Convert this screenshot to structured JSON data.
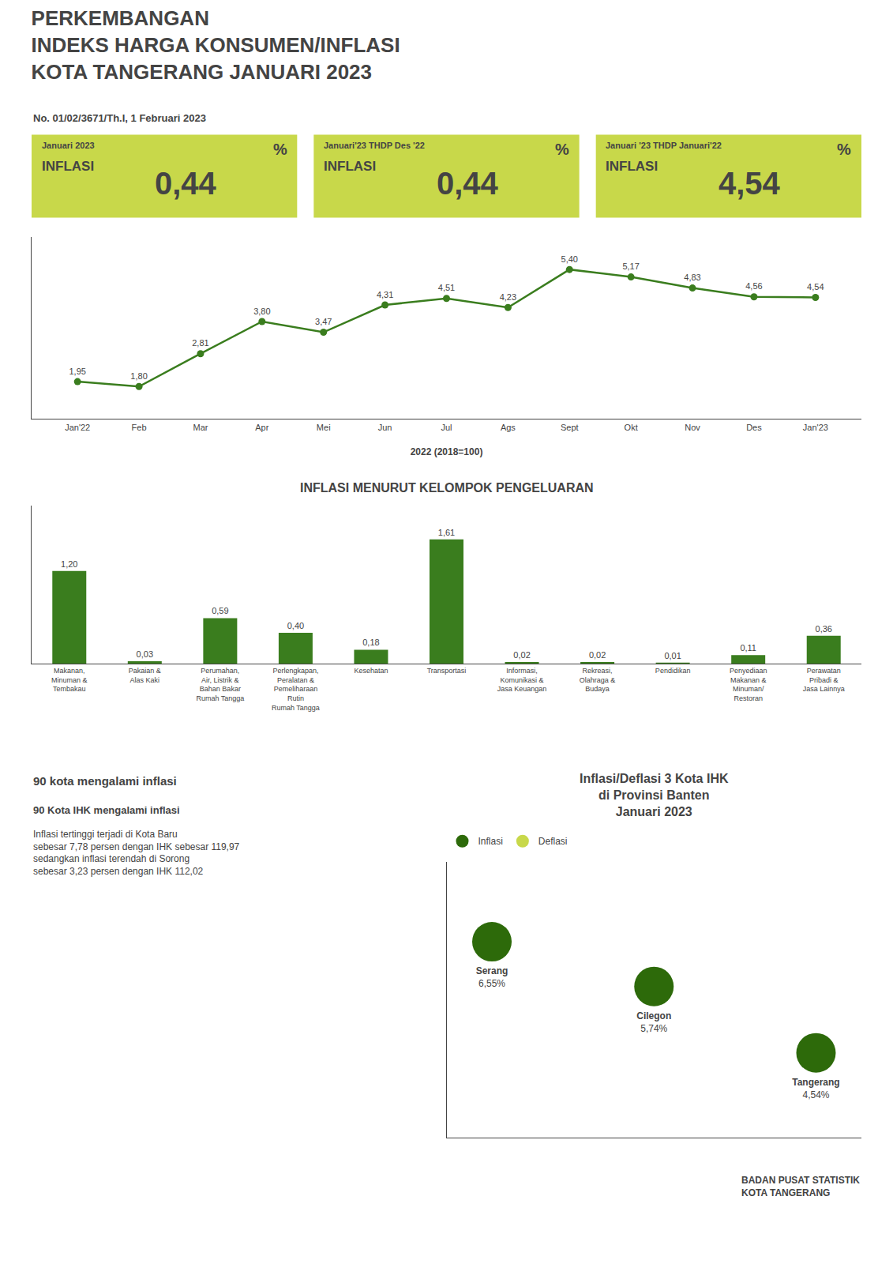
{
  "chart_data": [
    {
      "type": "indicator",
      "categories": [
        "Januari 2023",
        "Januari'23 THDP Des '22",
        "Januari '23 THDP Januari'22"
      ],
      "values": [
        0.44,
        0.44,
        4.54
      ],
      "value_labels": [
        "0,44",
        "0,44",
        "4,54"
      ],
      "data_labels": true,
      "annotations": [
        "INFLASI",
        "%"
      ],
      "color": "#c8d84a"
    },
    {
      "type": "line",
      "title": "PERKEMBANGAN\nINDEKS HARGA KONSUMEN/INFLASI\nKOTA TANGERANG JANUARI 2023",
      "subtitle": "No. 01/02/3671/Th.I, 1 Februari 2023",
      "categories": [
        "Jan'22",
        "Feb",
        "Mar",
        "Apr",
        "Mei",
        "Jun",
        "Jul",
        "Ags",
        "Sept",
        "Okt",
        "Nov",
        "Des",
        "Jan'23"
      ],
      "values": [
        1.95,
        1.8,
        2.81,
        3.8,
        3.47,
        4.31,
        4.51,
        4.23,
        5.4,
        5.17,
        4.83,
        4.56,
        4.54
      ],
      "value_labels": [
        "1,95",
        "1,80",
        "2,81",
        "3,80",
        "3,47",
        "4,31",
        "4,51",
        "4,23",
        "5,40",
        "5,17",
        "4,83",
        "4,56",
        "4,54"
      ],
      "data_labels": true,
      "xlabel": "2022 (2018=100)",
      "ylim": [
        0.8,
        6.4
      ],
      "tick_labels": "x",
      "grid": false,
      "color": "#3a7d1e",
      "marker": "circle"
    },
    {
      "type": "bar",
      "title": "INFLASI MENURUT KELOMPOK PENGELUARAN",
      "categories": [
        "Makanan,\nMinuman &\nTembakau",
        "Pakaian &\nAlas Kaki",
        "Perumahan,\nAir, Listrik &\nBahan Bakar\nRumah Tangga",
        "Perlengkapan,\nPeralatan &\nPemeliharaan\nRutin\nRumah Tangga",
        "Kesehatan",
        "Transportasi",
        "Informasi,\nKomunikasi &\nJasa Keuangan",
        "Rekreasi,\nOlahraga &\nBudaya",
        "Pendidikan",
        "Penyediaan\nMakanan &\nMinuman/\nRestoran",
        "Perawatan\nPribadi &\nJasa Lainnya"
      ],
      "values": [
        1.2,
        0.03,
        0.59,
        0.4,
        0.18,
        1.61,
        0.02,
        0.02,
        0.01,
        0.11,
        0.36
      ],
      "value_labels": [
        "1,20",
        "0,03",
        "0,59",
        "0,40",
        "0,18",
        "1,61",
        "0,02",
        "0,02",
        "0,01",
        "0,11",
        "0,36"
      ],
      "data_labels": true,
      "ylim": [
        0,
        2.05
      ],
      "tick_labels": "x",
      "grid": false,
      "color": "#3a7d1e"
    },
    {
      "type": "map",
      "title": "Inflasi/Deflasi 3 Kota IHK\ndi Provinsi Banten\nJanuari 2023",
      "categories": [
        "Serang",
        "Cilegon",
        "Tangerang"
      ],
      "series": [
        {
          "name": "Inflasi",
          "color": "#2d6a0a",
          "values": [
            6.55,
            5.74,
            4.54
          ],
          "value_labels": [
            "6,55%",
            "5,74%",
            "4,54%"
          ]
        },
        {
          "name": "Deflasi",
          "color": "#c8d84a",
          "values": [
            null,
            null,
            null
          ]
        }
      ],
      "data_labels": true,
      "ylim": [
        3,
        8
      ],
      "tick_labels": false,
      "grid": false,
      "legend": "upper left",
      "marker": "circle",
      "annotations": [
        "90 kota mengalami inflasi",
        "90 Kota IHK mengalami inflasi",
        "Inflasi tertinggi terjadi di Kota Baru\nsebesar 7,78 persen dengan IHK sebesar 119,97\nsedangkan inflasi terendah di Sorong\nsebesar 3,23 persen dengan IHK 112,02",
        "BADAN PUSAT STATISTIK\nKOTA TANGERANG"
      ]
    }
  ]
}
